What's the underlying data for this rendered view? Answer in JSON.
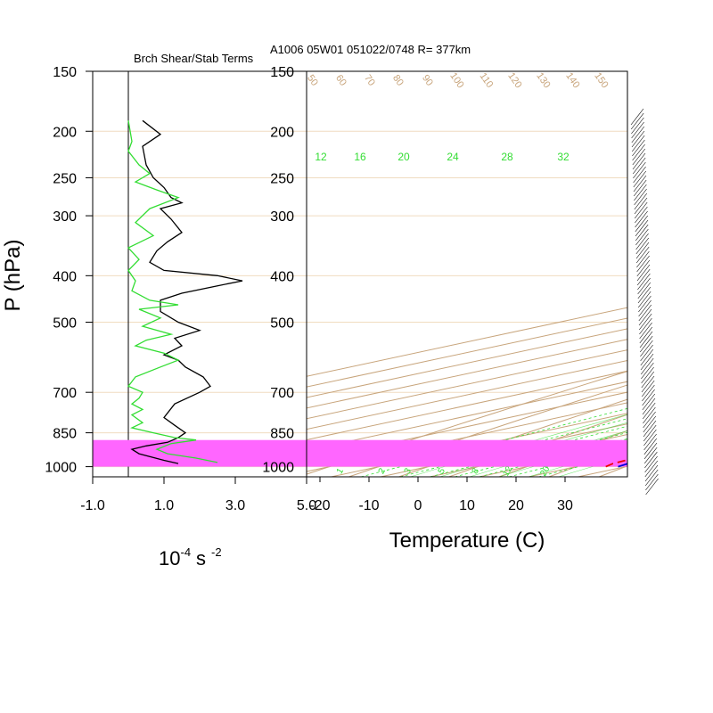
{
  "header": {
    "left_title": "Brch Shear/Stab Terms",
    "right_title": "A1006 05W01 051022/0748 R= 377km"
  },
  "colors": {
    "skewt_grid": "#c8a57c",
    "isobar_line": "#f0dcc0",
    "mixing_ratio": "#33dd33",
    "temperature": "#0000dd",
    "dewpoint": "#ee0000",
    "shear_term": "#000000",
    "stability_term": "#33dd33",
    "highlight_band": "#ff66ff"
  },
  "chart_data": [
    {
      "type": "line",
      "title": "Brch Shear/Stab Terms",
      "xlabel_base": "10",
      "xlabel_exp": "-4",
      "xlabel_unit": "s",
      "xlabel_unit_exp": "-2",
      "ylabel": "P (hPa)",
      "xlim": [
        -1.0,
        5.0
      ],
      "ylim": [
        1050,
        150
      ],
      "y_scale": "log",
      "x_ticks": [
        "-1.0",
        "1.0",
        "3.0",
        "5.0"
      ],
      "y_ticks": [
        "150",
        "200",
        "250",
        "300",
        "400",
        "500",
        "700",
        "850",
        "1000"
      ],
      "zero_line": 0,
      "highlight_band_hPa": [
        1000,
        880
      ],
      "series": [
        {
          "key": "shear",
          "color": "#000000",
          "points": [
            [
              0.4,
              190
            ],
            [
              0.9,
              203
            ],
            [
              0.4,
              215
            ],
            [
              0.5,
              235
            ],
            [
              0.7,
              250
            ],
            [
              1.0,
              262
            ],
            [
              1.2,
              275
            ],
            [
              1.5,
              282
            ],
            [
              0.9,
              290
            ],
            [
              1.2,
              305
            ],
            [
              1.5,
              325
            ],
            [
              1.1,
              340
            ],
            [
              0.8,
              355
            ],
            [
              0.6,
              375
            ],
            [
              1.0,
              390
            ],
            [
              2.5,
              400
            ],
            [
              3.2,
              410
            ],
            [
              2.5,
              420
            ],
            [
              1.5,
              435
            ],
            [
              0.9,
              450
            ],
            [
              0.9,
              475
            ],
            [
              1.4,
              500
            ],
            [
              2.0,
              520
            ],
            [
              1.3,
              540
            ],
            [
              1.5,
              560
            ],
            [
              1.0,
              585
            ],
            [
              1.4,
              600
            ],
            [
              1.6,
              620
            ],
            [
              2.1,
              650
            ],
            [
              2.3,
              680
            ],
            [
              2.0,
              700
            ],
            [
              1.3,
              740
            ],
            [
              1.0,
              790
            ],
            [
              1.3,
              820
            ],
            [
              1.6,
              850
            ],
            [
              1.4,
              870
            ],
            [
              1.1,
              890
            ],
            [
              0.5,
              905
            ],
            [
              0.1,
              920
            ],
            [
              0.3,
              940
            ],
            [
              1.0,
              970
            ],
            [
              1.4,
              985
            ]
          ]
        },
        {
          "key": "stability",
          "color": "#33dd33",
          "points": [
            [
              0.0,
              190
            ],
            [
              0.1,
              210
            ],
            [
              0.0,
              220
            ],
            [
              0.3,
              235
            ],
            [
              0.6,
              245
            ],
            [
              0.2,
              255
            ],
            [
              0.8,
              265
            ],
            [
              1.4,
              275
            ],
            [
              0.6,
              290
            ],
            [
              0.2,
              310
            ],
            [
              0.7,
              330
            ],
            [
              0.0,
              350
            ],
            [
              0.3,
              370
            ],
            [
              0.0,
              390
            ],
            [
              0.2,
              410
            ],
            [
              0.1,
              430
            ],
            [
              0.6,
              450
            ],
            [
              1.4,
              460
            ],
            [
              0.3,
              470
            ],
            [
              0.9,
              490
            ],
            [
              0.4,
              510
            ],
            [
              1.2,
              530
            ],
            [
              0.5,
              545
            ],
            [
              0.2,
              560
            ],
            [
              1.0,
              580
            ],
            [
              1.4,
              600
            ],
            [
              0.9,
              620
            ],
            [
              0.2,
              650
            ],
            [
              0.0,
              680
            ],
            [
              0.4,
              700
            ],
            [
              0.3,
              720
            ],
            [
              0.1,
              740
            ],
            [
              0.4,
              760
            ],
            [
              0.1,
              780
            ],
            [
              0.4,
              810
            ],
            [
              0.1,
              830
            ],
            [
              0.7,
              850
            ],
            [
              1.3,
              870
            ],
            [
              1.9,
              880
            ],
            [
              1.2,
              895
            ],
            [
              0.8,
              920
            ],
            [
              1.1,
              940
            ],
            [
              1.9,
              960
            ],
            [
              2.5,
              980
            ]
          ]
        }
      ]
    },
    {
      "type": "line",
      "chart_kind": "skew-T log-p",
      "title": "A1006 05W01 051022/0748 R= 377km",
      "xlabel": "Temperature (C)",
      "xlim": [
        -25,
        40
      ],
      "ylim": [
        1050,
        150
      ],
      "y_scale": "log",
      "x_ticks": [
        "-20",
        "-10",
        "0",
        "10",
        "20",
        "30"
      ],
      "y_ticks": [
        "150",
        "200",
        "250",
        "300",
        "400",
        "500",
        "700",
        "850",
        "1000"
      ],
      "mixing_ratio_labels": [
        "12",
        "16",
        "20",
        "24",
        "28",
        "32"
      ],
      "mixing_ratio_bottom_labels": [
        "1",
        "2",
        "3",
        "5",
        "8",
        "12",
        "20"
      ],
      "dry_adiabat_labels": [
        "50",
        "60",
        "70",
        "80",
        "90",
        "100",
        "110",
        "120",
        "130",
        "140",
        "150"
      ],
      "highlight_band_hPa": [
        1000,
        880
      ],
      "series": [
        {
          "key": "temperature",
          "color": "#0000dd",
          "style": "solid",
          "points": [
            [
              28.5,
              1000
            ],
            [
              27.5,
              985
            ],
            [
              26,
              960
            ],
            [
              25,
              935
            ],
            [
              25,
              910
            ],
            [
              24,
              880
            ],
            [
              23.5,
              850
            ],
            [
              23,
              810
            ],
            [
              22.5,
              770
            ],
            [
              22.5,
              750
            ],
            [
              21.3,
              700
            ],
            [
              19.5,
              650
            ],
            [
              18,
              620
            ],
            [
              16.5,
              600
            ],
            [
              15.5,
              580
            ],
            [
              14.5,
              560
            ],
            [
              13.2,
              540
            ],
            [
              12,
              520
            ],
            [
              10.5,
              500
            ],
            [
              8.5,
              475
            ],
            [
              7.5,
              460
            ],
            [
              6,
              450
            ],
            [
              4.5,
              440
            ],
            [
              3.5,
              425
            ],
            [
              3,
              410
            ],
            [
              2.5,
              400
            ],
            [
              1.5,
              390
            ],
            [
              0.5,
              380
            ],
            [
              0,
              370
            ],
            [
              -2,
              350
            ],
            [
              -4.5,
              330
            ],
            [
              -6.5,
              310
            ],
            [
              -8.5,
              295
            ],
            [
              -10,
              285
            ],
            [
              -12,
              270
            ],
            [
              -14,
              255
            ],
            [
              -17,
              240
            ],
            [
              -20,
              225
            ],
            [
              -23,
              210
            ],
            [
              -25.5,
              200
            ],
            [
              -29,
              190
            ],
            [
              -31,
              183
            ],
            [
              -33,
              177
            ]
          ]
        },
        {
          "key": "dewpoint",
          "color": "#ee0000",
          "style": "dashed",
          "points": [
            [
              26,
              1000
            ],
            [
              24.5,
              985
            ],
            [
              23.8,
              960
            ],
            [
              23,
              935
            ],
            [
              22.5,
              905
            ],
            [
              22,
              880
            ],
            [
              21,
              860
            ],
            [
              20.5,
              840
            ],
            [
              19.5,
              810
            ],
            [
              18.5,
              780
            ],
            [
              18,
              750
            ],
            [
              17,
              720
            ],
            [
              15,
              680
            ],
            [
              14.5,
              660
            ],
            [
              13,
              630
            ],
            [
              11,
              600
            ],
            [
              12,
              580
            ],
            [
              11,
              560
            ],
            [
              8.5,
              540
            ],
            [
              7,
              520
            ],
            [
              6,
              500
            ],
            [
              5,
              480
            ],
            [
              5.5,
              460
            ],
            [
              5.5,
              445
            ],
            [
              5.5,
              435
            ],
            [
              4,
              425
            ],
            [
              1,
              415
            ],
            [
              -5,
              400
            ],
            [
              -9,
              390
            ],
            [
              -13,
              380
            ],
            [
              -17,
              360
            ],
            [
              -22,
              345
            ],
            [
              -22,
              335
            ],
            [
              -17,
              325
            ],
            [
              -12,
              315
            ],
            [
              -16,
              305
            ],
            [
              -19,
              300
            ],
            [
              -22,
              290
            ],
            [
              -18,
              280
            ],
            [
              -15,
              270
            ],
            [
              -16,
              260
            ],
            [
              -18,
              245
            ],
            [
              -21,
              230
            ],
            [
              -21.5,
              220
            ],
            [
              -23,
              213
            ]
          ]
        }
      ]
    }
  ]
}
